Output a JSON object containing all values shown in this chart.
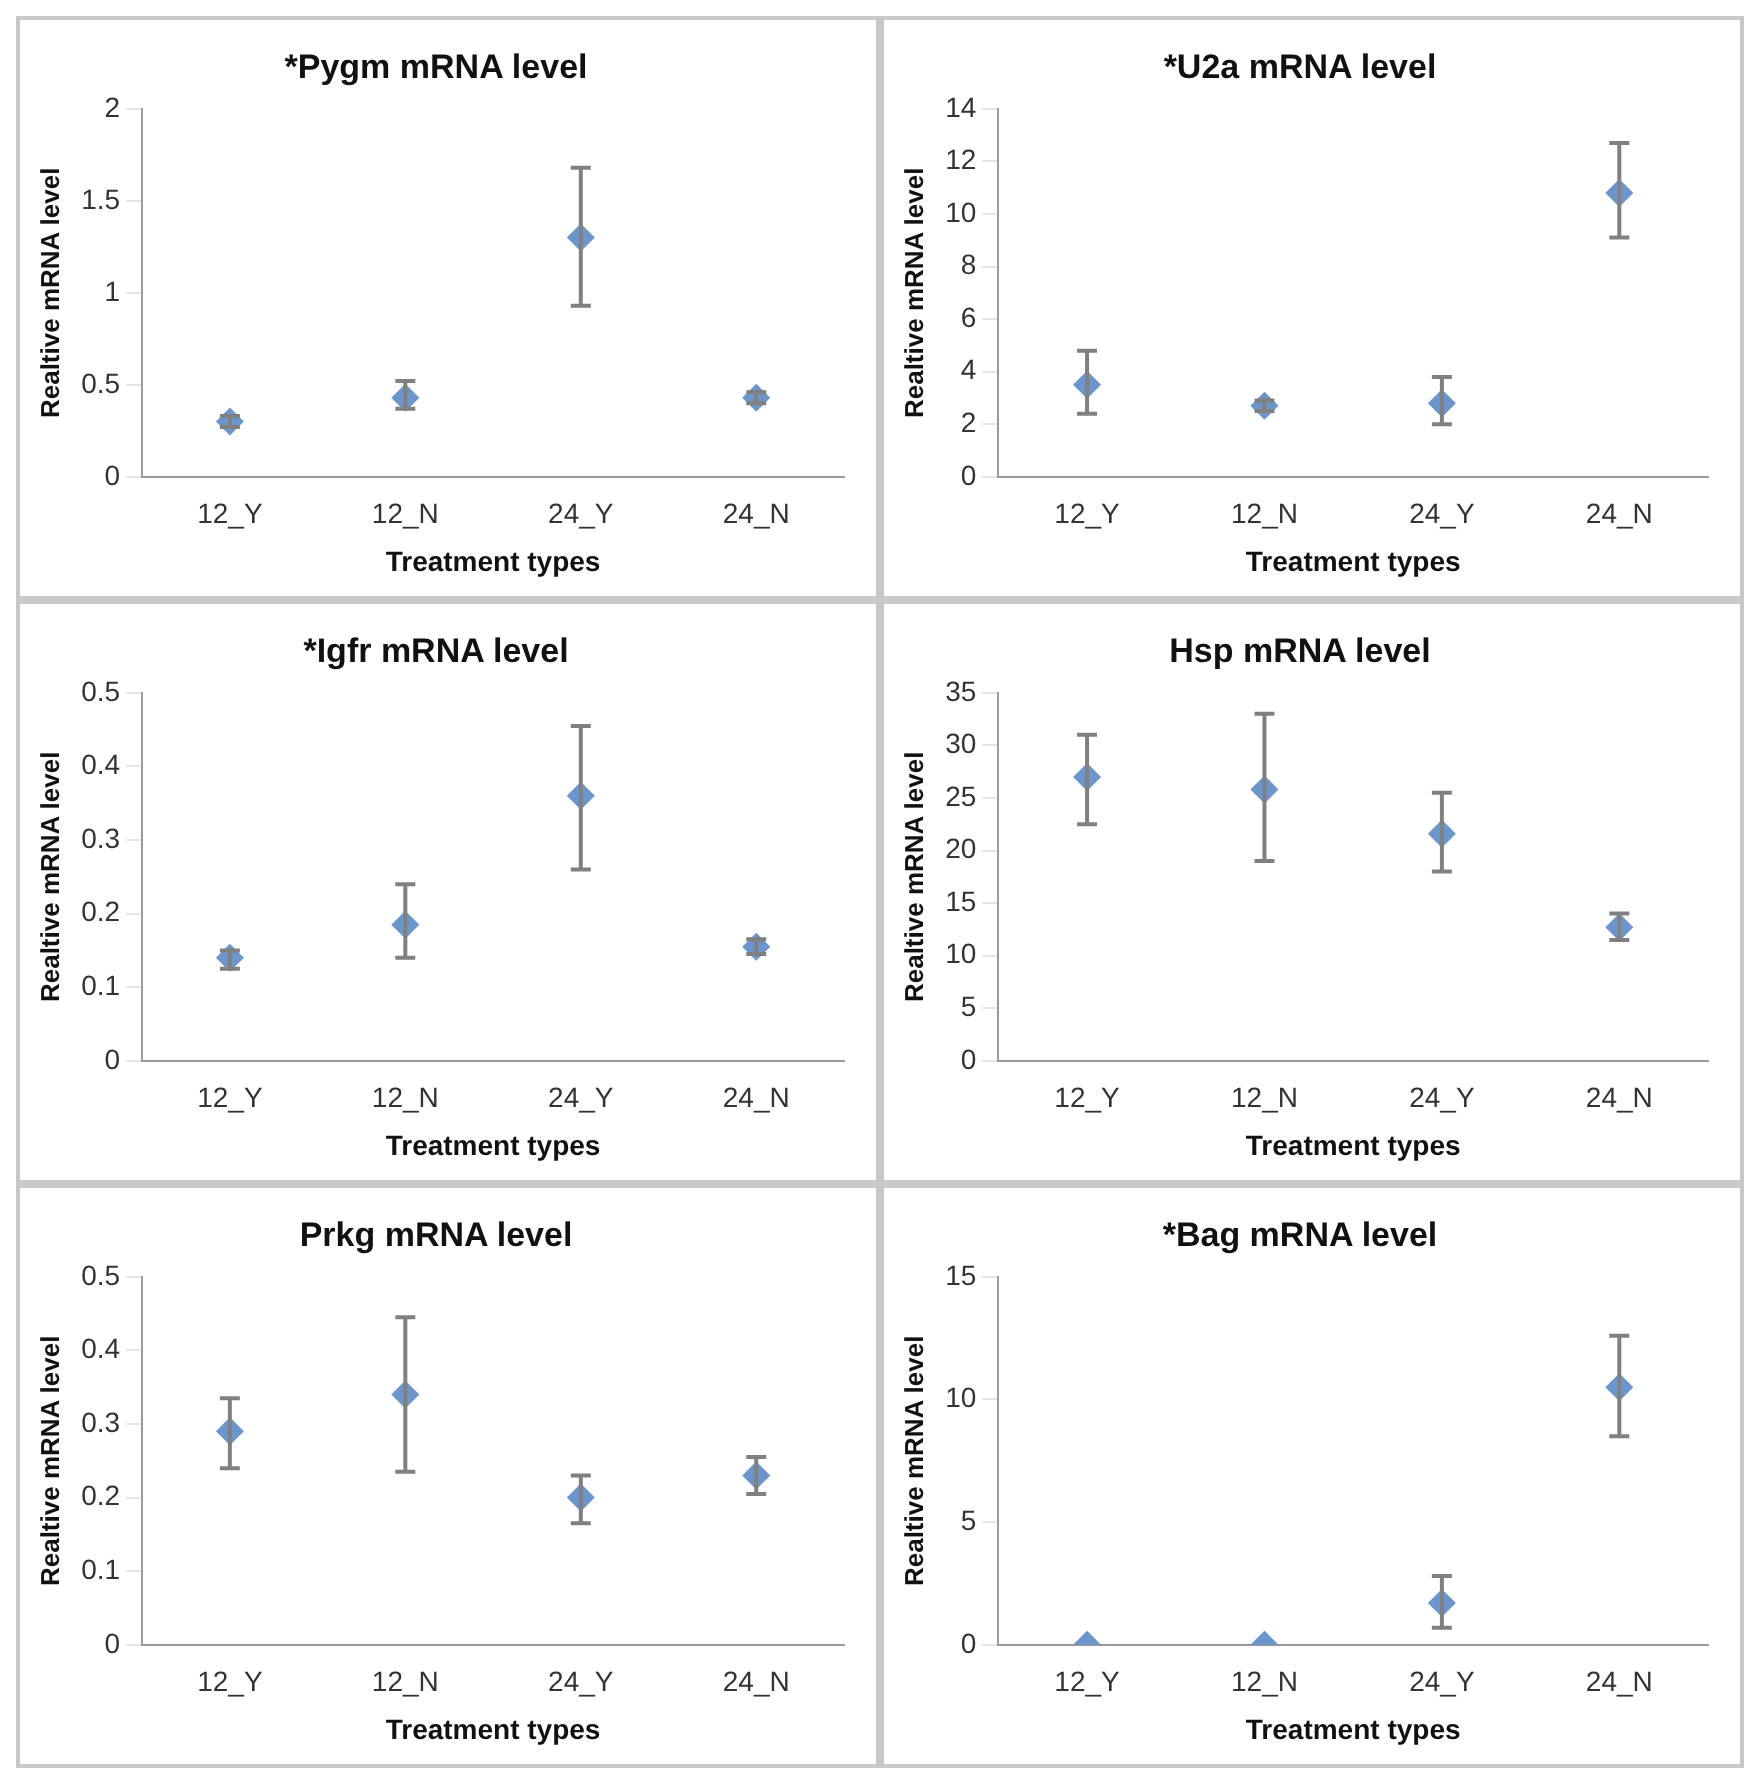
{
  "chart_data": [
    {
      "type": "scatter",
      "title": "*Pygm mRNA level",
      "xlabel": "Treatment types",
      "ylabel": "Realtive mRNA level",
      "categories": [
        "12_Y",
        "12_N",
        "24_Y",
        "24_N"
      ],
      "values": [
        0.3,
        0.43,
        1.3,
        0.43
      ],
      "errors": [
        [
          0.27,
          0.33
        ],
        [
          0.37,
          0.52
        ],
        [
          0.93,
          1.68
        ],
        [
          0.4,
          0.46
        ]
      ],
      "color": "#6a95cd",
      "ylim": [
        0,
        2
      ],
      "yticks": [
        0,
        0.5,
        1,
        1.5,
        2
      ],
      "grid": false,
      "legend": false,
      "marker": "diamond"
    },
    {
      "type": "scatter",
      "title": "*U2a mRNA level",
      "xlabel": "Treatment types",
      "ylabel": "Realtive mRNA level",
      "categories": [
        "12_Y",
        "12_N",
        "24_Y",
        "24_N"
      ],
      "values": [
        3.5,
        2.7,
        2.8,
        10.8
      ],
      "errors": [
        [
          2.4,
          4.8
        ],
        [
          2.5,
          2.9
        ],
        [
          2.0,
          3.8
        ],
        [
          9.1,
          12.7
        ]
      ],
      "color": "#6a95cd",
      "ylim": [
        0,
        14
      ],
      "yticks": [
        0,
        2,
        4,
        6,
        8,
        10,
        12,
        14
      ],
      "grid": false,
      "legend": false,
      "marker": "diamond"
    },
    {
      "type": "scatter",
      "title": "*Igfr mRNA level",
      "xlabel": "Treatment types",
      "ylabel": "Realtive mRNA level",
      "categories": [
        "12_Y",
        "12_N",
        "24_Y",
        "24_N"
      ],
      "values": [
        0.14,
        0.185,
        0.36,
        0.155
      ],
      "errors": [
        [
          0.125,
          0.15
        ],
        [
          0.14,
          0.24
        ],
        [
          0.26,
          0.455
        ],
        [
          0.145,
          0.165
        ]
      ],
      "color": "#6a95cd",
      "ylim": [
        0,
        0.5
      ],
      "yticks": [
        0,
        0.1,
        0.2,
        0.3,
        0.4,
        0.5
      ],
      "grid": false,
      "legend": false,
      "marker": "diamond"
    },
    {
      "type": "scatter",
      "title": "Hsp mRNA level",
      "xlabel": "Treatment types",
      "ylabel": "Realtive mRNA level",
      "categories": [
        "12_Y",
        "12_N",
        "24_Y",
        "24_N"
      ],
      "values": [
        27,
        25.8,
        21.6,
        12.7
      ],
      "errors": [
        [
          22.5,
          31
        ],
        [
          19,
          33
        ],
        [
          18,
          25.5
        ],
        [
          11.5,
          14
        ]
      ],
      "color": "#6a95cd",
      "ylim": [
        0,
        35
      ],
      "yticks": [
        0,
        5,
        10,
        15,
        20,
        25,
        30,
        35
      ],
      "grid": false,
      "legend": false,
      "marker": "diamond"
    },
    {
      "type": "scatter",
      "title": "Prkg mRNA level",
      "xlabel": "Treatment types",
      "ylabel": "Realtive mRNA level",
      "categories": [
        "12_Y",
        "12_N",
        "24_Y",
        "24_N"
      ],
      "values": [
        0.29,
        0.34,
        0.2,
        0.23
      ],
      "errors": [
        [
          0.24,
          0.335
        ],
        [
          0.235,
          0.445
        ],
        [
          0.165,
          0.23
        ],
        [
          0.205,
          0.255
        ]
      ],
      "color": "#6a95cd",
      "ylim": [
        0,
        0.5
      ],
      "yticks": [
        0,
        0.1,
        0.2,
        0.3,
        0.4,
        0.5
      ],
      "grid": false,
      "legend": false,
      "marker": "diamond"
    },
    {
      "type": "scatter",
      "title": "*Bag mRNA level",
      "xlabel": "Treatment types",
      "ylabel": "Realtive mRNA level",
      "categories": [
        "12_Y",
        "12_N",
        "24_Y",
        "24_N"
      ],
      "values": [
        0,
        0,
        1.7,
        10.5
      ],
      "errors": [
        null,
        null,
        [
          0.7,
          2.8
        ],
        [
          8.5,
          12.6
        ]
      ],
      "color": "#6a95cd",
      "ylim": [
        0,
        15
      ],
      "yticks": [
        0,
        5,
        10,
        15
      ],
      "grid": false,
      "legend": false,
      "marker": "diamond"
    }
  ]
}
